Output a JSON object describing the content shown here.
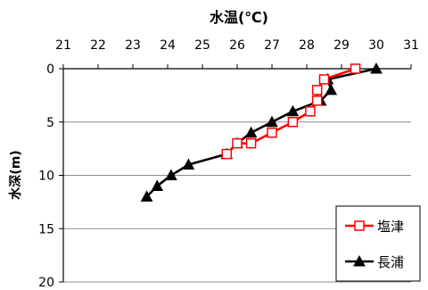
{
  "chart_data": {
    "type": "line",
    "title": "水温(℃)",
    "xlabel": "水温(℃)",
    "ylabel": "水深(m)",
    "xlim": [
      21,
      31
    ],
    "ylim": [
      0,
      20
    ],
    "x_axis_position": "top",
    "y_axis_inverted": true,
    "x_ticks": [
      21,
      22,
      23,
      24,
      25,
      26,
      27,
      28,
      29,
      30,
      31
    ],
    "y_ticks": [
      0,
      5,
      10,
      15,
      20
    ],
    "grid": "horizontal",
    "legend_position": "bottom-right",
    "series": [
      {
        "name": "塩津",
        "color": "#ff0000",
        "marker": "open-square",
        "points": [
          {
            "temp": 29.4,
            "depth": 0
          },
          {
            "temp": 28.5,
            "depth": 1
          },
          {
            "temp": 28.3,
            "depth": 2
          },
          {
            "temp": 28.3,
            "depth": 3
          },
          {
            "temp": 28.1,
            "depth": 4
          },
          {
            "temp": 27.6,
            "depth": 5
          },
          {
            "temp": 27.0,
            "depth": 6
          },
          {
            "temp": 26.4,
            "depth": 7
          },
          {
            "temp": 26.0,
            "depth": 7
          },
          {
            "temp": 25.7,
            "depth": 8
          }
        ]
      },
      {
        "name": "長浦",
        "color": "#000000",
        "marker": "filled-triangle",
        "points": [
          {
            "temp": 30.0,
            "depth": 0
          },
          {
            "temp": 28.6,
            "depth": 1
          },
          {
            "temp": 28.7,
            "depth": 2
          },
          {
            "temp": 28.4,
            "depth": 3
          },
          {
            "temp": 27.6,
            "depth": 4
          },
          {
            "temp": 27.0,
            "depth": 5
          },
          {
            "temp": 26.4,
            "depth": 6
          },
          {
            "temp": 26.0,
            "depth": 7
          },
          {
            "temp": 25.7,
            "depth": 8
          },
          {
            "temp": 24.6,
            "depth": 9
          },
          {
            "temp": 24.1,
            "depth": 10
          },
          {
            "temp": 23.7,
            "depth": 11
          },
          {
            "temp": 23.4,
            "depth": 12
          }
        ]
      }
    ]
  }
}
